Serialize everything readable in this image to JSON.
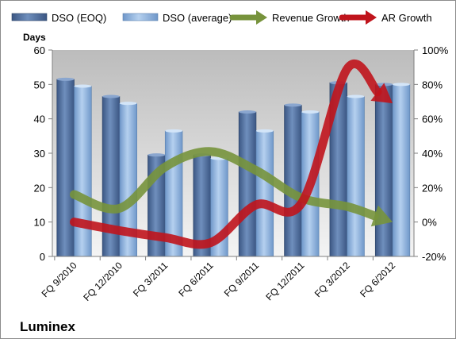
{
  "chart_data": {
    "type": "bar",
    "title": "Luminex",
    "ylabel": "Days",
    "ylim": [
      0,
      60
    ],
    "y2lim": [
      -20,
      100
    ],
    "y2_format": "percent",
    "categories": [
      "FQ 9/2010",
      "FQ 12/2010",
      "FQ 3/2011",
      "FQ 6/2011",
      "FQ 9/2011",
      "FQ 12/2011",
      "FQ 3/2012",
      "FQ 6/2012"
    ],
    "series": [
      {
        "name": "DSO (EOQ)",
        "kind": "bar",
        "axis": "left",
        "color": "#4f6fa0",
        "values": [
          51.5,
          46.5,
          29.5,
          29.5,
          42,
          44,
          50.5,
          50
        ]
      },
      {
        "name": "DSO (average)",
        "kind": "bar",
        "axis": "left",
        "color": "#8db4e2",
        "values": [
          49.5,
          44.5,
          36.5,
          28.5,
          36.5,
          42,
          46.5,
          50
        ]
      },
      {
        "name": "Revenue Growth",
        "kind": "arrow-line",
        "axis": "right",
        "color": "#77933c",
        "values": [
          16,
          8,
          32,
          41,
          30,
          14,
          9,
          0
        ]
      },
      {
        "name": "AR Growth",
        "kind": "arrow-line",
        "axis": "right",
        "color": "#c0141c",
        "values": [
          0,
          -5,
          -9,
          -12,
          10,
          11,
          89,
          69
        ]
      }
    ],
    "legend_position": "top",
    "grid": false
  }
}
